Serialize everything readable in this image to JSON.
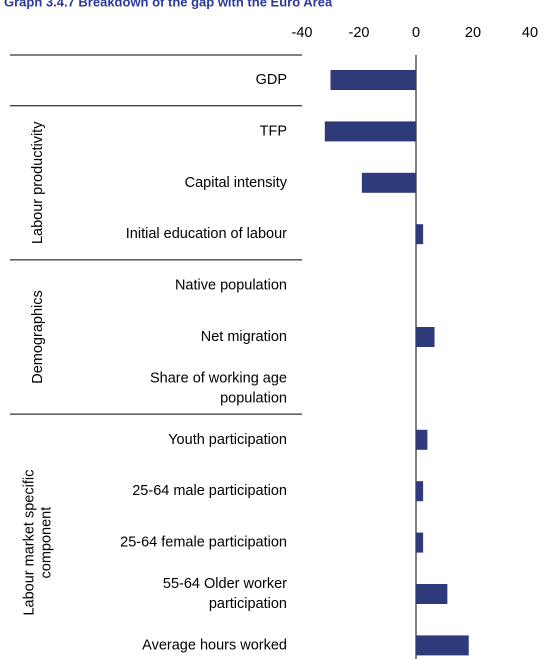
{
  "chart_data": {
    "type": "barh",
    "title": "Graph 3.4.7  Breakdown of the gap with the Euro Area",
    "categories": [
      "GDP",
      "TFP",
      "Capital intensity",
      "Initial education of labour",
      "Native population",
      "Net migration",
      "Share of working age population",
      "Youth participation",
      "25-64 male participation",
      "25-64 female participation",
      "55-64 Older worker participation",
      "Average hours worked"
    ],
    "values": [
      -30,
      -32,
      -19,
      2.5,
      0,
      6.5,
      0,
      4,
      2.5,
      2.5,
      11,
      18.5
    ],
    "groups": [
      "Labour productivity",
      "Demographics",
      "Labour market specific component"
    ],
    "color": "#2e3a7a",
    "xlim": [
      -40,
      40
    ],
    "xticks": [
      -40,
      -20,
      0,
      20,
      40
    ]
  }
}
